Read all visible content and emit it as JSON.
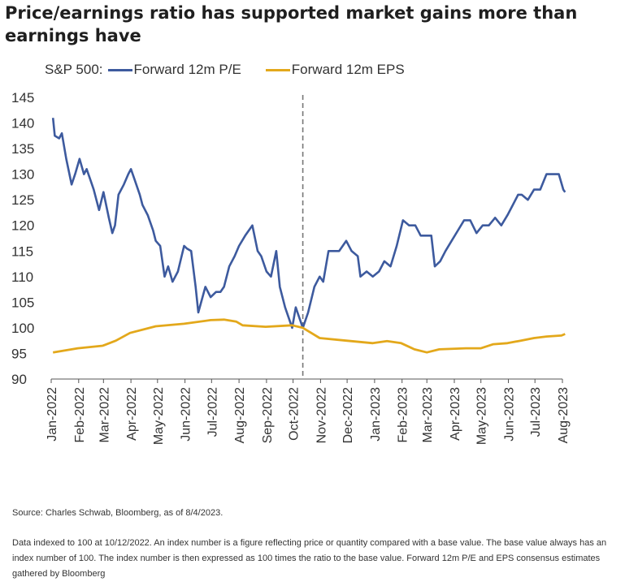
{
  "title": "Price/earnings ratio has supported market gains more than earnings have",
  "legend": {
    "prefix": "S&P 500:",
    "pe_label": "Forward 12m P/E",
    "eps_label": "Forward 12m EPS"
  },
  "source": "Source: Charles Schwab, Bloomberg, as of 8/4/2023.",
  "note": "Data indexed to 100 at 10/12/2022. An index number is a figure reflecting price or quantity compared with a base value. The base value always has an index number of 100. The index number is then expressed as 100 times the ratio to the base value.  Forward 12m P/E and EPS consensus estimates gathered by Bloomberg",
  "chart_data": {
    "type": "line",
    "xlabel": "",
    "ylabel": "",
    "ylim": [
      90,
      145
    ],
    "yticks": [
      90,
      95,
      100,
      105,
      110,
      115,
      120,
      125,
      130,
      135,
      140,
      145
    ],
    "x_tick_labels": [
      "Jan-2022",
      "Feb-2022",
      "Mar-2022",
      "Apr-2022",
      "May-2022",
      "Jun-2022",
      "Jul-2022",
      "Aug-2022",
      "Sep-2022",
      "Oct-2022",
      "Nov-2022",
      "Dec-2022",
      "Jan-2023",
      "Feb-2023",
      "Mar-2023",
      "Apr-2023",
      "May-2023",
      "Jun-2023",
      "Jul-2023",
      "Aug-2023"
    ],
    "reference_line": {
      "date": "2022-10-12",
      "style": "dashed"
    },
    "grid": false,
    "legend_position": "top-left",
    "colors": {
      "pe": "#3d5a9e",
      "eps": "#e3a81b",
      "ref": "#777777"
    },
    "series": [
      {
        "name": "Forward 12m P/E",
        "key": "pe",
        "points": [
          [
            "2022-01-03",
            141
          ],
          [
            "2022-01-05",
            137.5
          ],
          [
            "2022-01-10",
            137
          ],
          [
            "2022-01-13",
            138
          ],
          [
            "2022-01-18",
            133
          ],
          [
            "2022-01-24",
            128
          ],
          [
            "2022-01-28",
            130
          ],
          [
            "2022-02-02",
            133
          ],
          [
            "2022-02-07",
            130
          ],
          [
            "2022-02-10",
            131
          ],
          [
            "2022-02-14",
            129
          ],
          [
            "2022-02-18",
            127
          ],
          [
            "2022-02-24",
            123
          ],
          [
            "2022-03-01",
            126.5
          ],
          [
            "2022-03-07",
            121.5
          ],
          [
            "2022-03-11",
            118.5
          ],
          [
            "2022-03-14",
            120
          ],
          [
            "2022-03-18",
            126
          ],
          [
            "2022-03-24",
            128
          ],
          [
            "2022-03-29",
            130
          ],
          [
            "2022-04-01",
            131
          ],
          [
            "2022-04-05",
            129
          ],
          [
            "2022-04-11",
            126
          ],
          [
            "2022-04-14",
            124
          ],
          [
            "2022-04-20",
            122
          ],
          [
            "2022-04-26",
            119
          ],
          [
            "2022-04-29",
            117
          ],
          [
            "2022-05-04",
            116
          ],
          [
            "2022-05-09",
            110
          ],
          [
            "2022-05-13",
            112
          ],
          [
            "2022-05-18",
            109
          ],
          [
            "2022-05-24",
            111
          ],
          [
            "2022-05-31",
            116
          ],
          [
            "2022-06-03",
            115.5
          ],
          [
            "2022-06-08",
            115
          ],
          [
            "2022-06-13",
            108
          ],
          [
            "2022-06-16",
            103
          ],
          [
            "2022-06-24",
            108
          ],
          [
            "2022-06-30",
            106
          ],
          [
            "2022-07-06",
            107
          ],
          [
            "2022-07-11",
            107
          ],
          [
            "2022-07-15",
            108
          ],
          [
            "2022-07-21",
            112
          ],
          [
            "2022-07-27",
            114
          ],
          [
            "2022-08-01",
            116
          ],
          [
            "2022-08-08",
            118
          ],
          [
            "2022-08-16",
            120
          ],
          [
            "2022-08-22",
            115
          ],
          [
            "2022-08-26",
            114
          ],
          [
            "2022-09-01",
            111
          ],
          [
            "2022-09-06",
            110
          ],
          [
            "2022-09-12",
            115
          ],
          [
            "2022-09-16",
            108
          ],
          [
            "2022-09-22",
            104
          ],
          [
            "2022-09-30",
            100
          ],
          [
            "2022-10-04",
            104
          ],
          [
            "2022-10-12",
            100
          ],
          [
            "2022-10-18",
            103
          ],
          [
            "2022-10-25",
            108
          ],
          [
            "2022-10-31",
            110
          ],
          [
            "2022-11-04",
            109
          ],
          [
            "2022-11-10",
            115
          ],
          [
            "2022-11-15",
            115
          ],
          [
            "2022-11-22",
            115
          ],
          [
            "2022-11-30",
            117
          ],
          [
            "2022-12-06",
            115
          ],
          [
            "2022-12-13",
            114
          ],
          [
            "2022-12-16",
            110
          ],
          [
            "2022-12-23",
            111
          ],
          [
            "2022-12-30",
            110
          ],
          [
            "2023-01-06",
            111
          ],
          [
            "2023-01-12",
            113
          ],
          [
            "2023-01-19",
            112
          ],
          [
            "2023-01-26",
            116
          ],
          [
            "2023-02-02",
            121
          ],
          [
            "2023-02-09",
            120
          ],
          [
            "2023-02-16",
            120
          ],
          [
            "2023-02-22",
            118
          ],
          [
            "2023-02-28",
            118
          ],
          [
            "2023-03-06",
            118
          ],
          [
            "2023-03-10",
            112
          ],
          [
            "2023-03-16",
            113
          ],
          [
            "2023-03-22",
            115
          ],
          [
            "2023-03-29",
            117
          ],
          [
            "2023-04-05",
            119
          ],
          [
            "2023-04-12",
            121
          ],
          [
            "2023-04-19",
            121
          ],
          [
            "2023-04-26",
            118.5
          ],
          [
            "2023-05-03",
            120
          ],
          [
            "2023-05-10",
            120
          ],
          [
            "2023-05-17",
            121.5
          ],
          [
            "2023-05-24",
            120
          ],
          [
            "2023-05-31",
            122
          ],
          [
            "2023-06-06",
            124
          ],
          [
            "2023-06-12",
            126
          ],
          [
            "2023-06-16",
            126
          ],
          [
            "2023-06-23",
            125
          ],
          [
            "2023-06-30",
            127
          ],
          [
            "2023-07-07",
            127
          ],
          [
            "2023-07-14",
            130
          ],
          [
            "2023-07-21",
            130
          ],
          [
            "2023-07-28",
            130
          ],
          [
            "2023-08-02",
            127
          ],
          [
            "2023-08-04",
            126.5
          ]
        ]
      },
      {
        "name": "Forward 12m EPS",
        "key": "eps",
        "points": [
          [
            "2022-01-03",
            95.2
          ],
          [
            "2022-01-31",
            96
          ],
          [
            "2022-02-28",
            96.5
          ],
          [
            "2022-03-15",
            97.5
          ],
          [
            "2022-03-31",
            99
          ],
          [
            "2022-04-29",
            100.3
          ],
          [
            "2022-05-31",
            100.8
          ],
          [
            "2022-06-30",
            101.5
          ],
          [
            "2022-07-15",
            101.6
          ],
          [
            "2022-07-29",
            101.2
          ],
          [
            "2022-08-05",
            100.5
          ],
          [
            "2022-08-31",
            100.2
          ],
          [
            "2022-09-30",
            100.5
          ],
          [
            "2022-10-12",
            100
          ],
          [
            "2022-10-31",
            98
          ],
          [
            "2022-11-30",
            97.5
          ],
          [
            "2022-12-30",
            97
          ],
          [
            "2023-01-15",
            97.4
          ],
          [
            "2023-01-31",
            97
          ],
          [
            "2023-02-15",
            95.8
          ],
          [
            "2023-03-01",
            95.2
          ],
          [
            "2023-03-15",
            95.8
          ],
          [
            "2023-04-14",
            96
          ],
          [
            "2023-05-01",
            96
          ],
          [
            "2023-05-15",
            96.8
          ],
          [
            "2023-05-31",
            97
          ],
          [
            "2023-06-15",
            97.5
          ],
          [
            "2023-06-30",
            98
          ],
          [
            "2023-07-14",
            98.3
          ],
          [
            "2023-07-31",
            98.5
          ],
          [
            "2023-08-04",
            98.8
          ]
        ]
      }
    ]
  }
}
